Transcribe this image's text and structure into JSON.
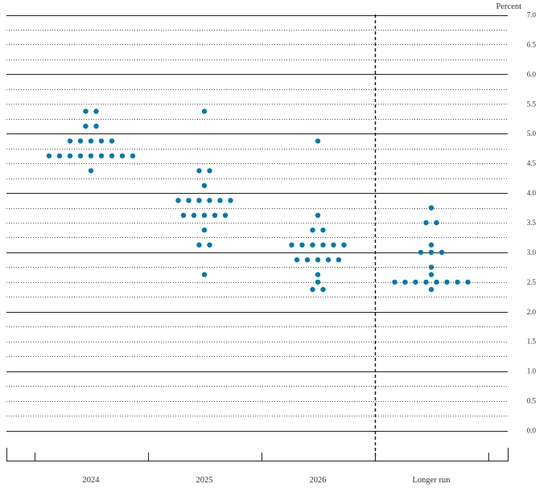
{
  "chart_data": {
    "type": "scatter",
    "unit_label": "Percent",
    "categories": [
      "2024",
      "2025",
      "2026",
      "Longer run"
    ],
    "ylim": [
      0,
      7
    ],
    "y_ticks": [
      "0.0",
      "0.5",
      "1.0",
      "1.5",
      "2.0",
      "2.5",
      "3.0",
      "3.5",
      "4.0",
      "4.5",
      "5.0",
      "5.5",
      "6.0",
      "6.5",
      "7.0"
    ],
    "grid": true,
    "dot_color": "#0a78a6",
    "points": [
      {
        "category": "2024",
        "y": 5.375,
        "count": 2
      },
      {
        "category": "2024",
        "y": 5.125,
        "count": 2
      },
      {
        "category": "2024",
        "y": 4.875,
        "count": 5
      },
      {
        "category": "2024",
        "y": 4.625,
        "count": 9
      },
      {
        "category": "2024",
        "y": 4.375,
        "count": 1
      },
      {
        "category": "2025",
        "y": 5.375,
        "count": 1
      },
      {
        "category": "2025",
        "y": 4.375,
        "count": 2
      },
      {
        "category": "2025",
        "y": 4.125,
        "count": 1
      },
      {
        "category": "2025",
        "y": 3.875,
        "count": 6
      },
      {
        "category": "2025",
        "y": 3.625,
        "count": 5
      },
      {
        "category": "2025",
        "y": 3.375,
        "count": 1
      },
      {
        "category": "2025",
        "y": 3.125,
        "count": 2
      },
      {
        "category": "2025",
        "y": 2.625,
        "count": 1
      },
      {
        "category": "2026",
        "y": 4.875,
        "count": 1
      },
      {
        "category": "2026",
        "y": 3.625,
        "count": 1
      },
      {
        "category": "2026",
        "y": 3.375,
        "count": 2
      },
      {
        "category": "2026",
        "y": 3.125,
        "count": 6
      },
      {
        "category": "2026",
        "y": 2.875,
        "count": 5
      },
      {
        "category": "2026",
        "y": 2.625,
        "count": 1
      },
      {
        "category": "2026",
        "y": 2.5,
        "count": 1
      },
      {
        "category": "2026",
        "y": 2.375,
        "count": 2
      },
      {
        "category": "Longer run",
        "y": 3.75,
        "count": 1
      },
      {
        "category": "Longer run",
        "y": 3.5,
        "count": 2
      },
      {
        "category": "Longer run",
        "y": 3.125,
        "count": 1
      },
      {
        "category": "Longer run",
        "y": 3.0,
        "count": 3
      },
      {
        "category": "Longer run",
        "y": 2.75,
        "count": 1
      },
      {
        "category": "Longer run",
        "y": 2.625,
        "count": 1
      },
      {
        "category": "Longer run",
        "y": 2.5,
        "count": 8
      },
      {
        "category": "Longer run",
        "y": 2.375,
        "count": 1
      }
    ]
  }
}
